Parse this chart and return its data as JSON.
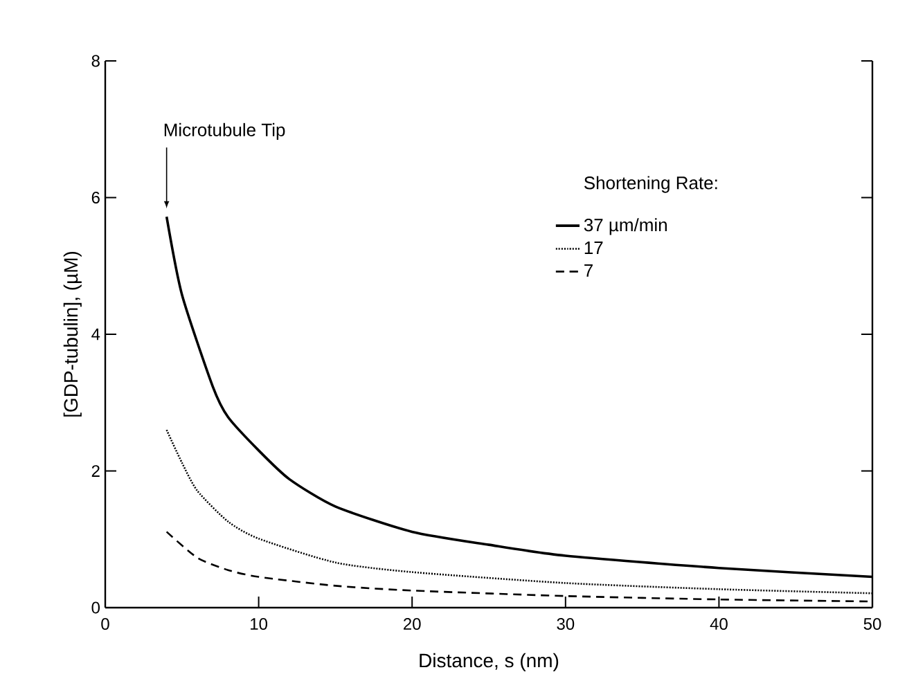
{
  "chart_data": {
    "type": "line",
    "xlabel": "Distance, s (nm)",
    "ylabel": "[GDP-tubulin], (µM)",
    "legend_title": "Shortening Rate:",
    "legend": "right",
    "xlim": [
      0,
      50
    ],
    "ylim": [
      0,
      8
    ],
    "xticks": [
      0,
      10,
      20,
      30,
      40,
      50
    ],
    "yticks": [
      0,
      2,
      4,
      6,
      8
    ],
    "grid": false,
    "annotations": [
      "Microtubule Tip"
    ],
    "x": [
      4,
      5,
      7,
      8,
      10,
      12,
      15,
      20,
      25,
      30,
      40,
      50
    ],
    "series": [
      {
        "name": "37 µm/min",
        "color": "#000000",
        "line_style": "solid",
        "values": [
          5.72,
          4.58,
          3.24,
          2.79,
          2.3,
          1.88,
          1.48,
          1.11,
          0.92,
          0.76,
          0.58,
          0.45
        ]
      },
      {
        "name": "17",
        "color": "#000000",
        "line_style": "dotted",
        "x": [
          4,
          5,
          6,
          8,
          10,
          15,
          20,
          30,
          40,
          50
        ],
        "values": [
          2.6,
          2.12,
          1.71,
          1.26,
          1.01,
          0.66,
          0.52,
          0.36,
          0.27,
          0.21
        ]
      },
      {
        "name": "7",
        "color": "#000000",
        "line_style": "dashed",
        "x": [
          4,
          6,
          8,
          10,
          15,
          20,
          30,
          40,
          50
        ],
        "values": [
          1.11,
          0.73,
          0.55,
          0.45,
          0.32,
          0.25,
          0.17,
          0.12,
          0.09
        ]
      }
    ]
  }
}
